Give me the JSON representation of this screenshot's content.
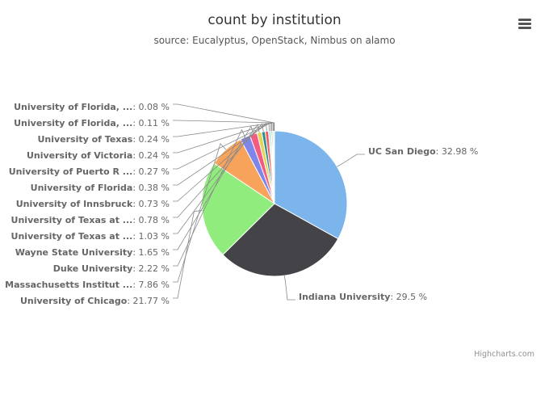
{
  "header": {
    "title": "count by institution",
    "subtitle": "source: Eucalyptus, OpenStack, Nimbus on alamo"
  },
  "credits": "Highcharts.com",
  "chart_data": {
    "type": "pie",
    "title": "count by institution",
    "subtitle": "source: Eucalyptus, OpenStack, Nimbus on alamo",
    "legend": "none",
    "slices": [
      {
        "name": "UC San Diego",
        "value": 32.98,
        "label": "UC San Diego",
        "value_text": "32.98 %",
        "color": "#7cb5ec"
      },
      {
        "name": "Indiana University",
        "value": 29.5,
        "label": "Indiana University",
        "value_text": "29.5 %",
        "color": "#434348"
      },
      {
        "name": "University of Chicago",
        "value": 21.77,
        "label": "University of Chicago",
        "value_text": "21.77 %",
        "color": "#90ed7d"
      },
      {
        "name": "Massachusetts Institut ...",
        "value": 7.86,
        "label": "Massachusetts Institut ...",
        "value_text": "7.86 %",
        "color": "#f7a35c"
      },
      {
        "name": "Duke University",
        "value": 2.22,
        "label": "Duke University",
        "value_text": "2.22 %",
        "color": "#8085e9"
      },
      {
        "name": "Wayne State University",
        "value": 1.65,
        "label": "Wayne State University",
        "value_text": "1.65 %",
        "color": "#f15c80"
      },
      {
        "name": "University of Texas at ...",
        "value": 1.03,
        "label": "University of Texas at ...",
        "value_text": "1.03 %",
        "color": "#e4d354"
      },
      {
        "name": "University of Texas at ...",
        "value": 0.78,
        "label": "University of Texas at ...",
        "value_text": "0.78 %",
        "color": "#2b908f"
      },
      {
        "name": "University of Innsbruck",
        "value": 0.73,
        "label": "University of Innsbruck",
        "value_text": "0.73 %",
        "color": "#f45b5b"
      },
      {
        "name": "University of Florida",
        "value": 0.38,
        "label": "University of Florida",
        "value_text": "0.38 %",
        "color": "#91e8e1"
      },
      {
        "name": "University of Puerto R ...",
        "value": 0.27,
        "label": "University of Puerto R ...",
        "value_text": "0.27 %",
        "color": "#7cb5ec"
      },
      {
        "name": "University of Victoria",
        "value": 0.24,
        "label": "University of Victoria",
        "value_text": "0.24 %",
        "color": "#434348"
      },
      {
        "name": "University of Texas",
        "value": 0.24,
        "label": "University of Texas",
        "value_text": "0.24 %",
        "color": "#90ed7d"
      },
      {
        "name": "University of Florida, ...",
        "value": 0.11,
        "label": "University of Florida, ...",
        "value_text": "0.11 %",
        "color": "#f7a35c"
      },
      {
        "name": "University of Florida, ...",
        "value": 0.08,
        "label": "University of Florida, ...",
        "value_text": "0.08 %",
        "color": "#8085e9"
      }
    ]
  }
}
